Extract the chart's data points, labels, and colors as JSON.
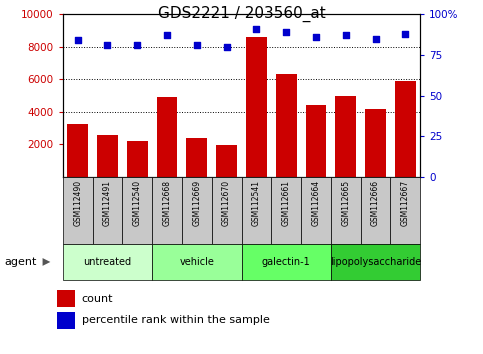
{
  "title": "GDS2221 / 203560_at",
  "samples": [
    "GSM112490",
    "GSM112491",
    "GSM112540",
    "GSM112668",
    "GSM112669",
    "GSM112670",
    "GSM112541",
    "GSM112661",
    "GSM112664",
    "GSM112665",
    "GSM112666",
    "GSM112667"
  ],
  "counts": [
    3250,
    2550,
    2200,
    4900,
    2400,
    1950,
    8600,
    6350,
    4450,
    5000,
    4200,
    5900
  ],
  "percentile_ranks": [
    84,
    81,
    81,
    87,
    81,
    80,
    91,
    89,
    86,
    87,
    85,
    88
  ],
  "groups": [
    {
      "label": "untreated",
      "indices": [
        0,
        1,
        2
      ],
      "color": "#ccffcc"
    },
    {
      "label": "vehicle",
      "indices": [
        3,
        4,
        5
      ],
      "color": "#99ff99"
    },
    {
      "label": "galectin-1",
      "indices": [
        6,
        7,
        8
      ],
      "color": "#66ff66"
    },
    {
      "label": "lipopolysaccharide",
      "indices": [
        9,
        10,
        11
      ],
      "color": "#33cc33"
    }
  ],
  "bar_color": "#cc0000",
  "dot_color": "#0000cc",
  "ylim_left": [
    0,
    10000
  ],
  "ylim_right": [
    0,
    100
  ],
  "yticks_left": [
    2000,
    4000,
    6000,
    8000,
    10000
  ],
  "yticks_right": [
    0,
    25,
    50,
    75,
    100
  ],
  "grid_values": [
    4000,
    6000,
    8000
  ],
  "left_tick_color": "#cc0000",
  "right_tick_color": "#0000cc",
  "agent_label": "agent",
  "legend_count": "count",
  "legend_percentile": "percentile rank within the sample",
  "background_color": "#ffffff",
  "sample_box_color": "#c8c8c8",
  "title_fontsize": 11
}
